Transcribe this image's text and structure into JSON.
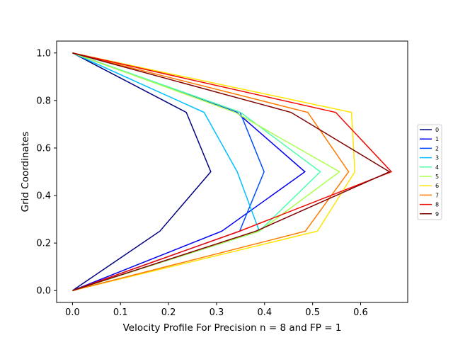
{
  "chart_data": {
    "type": "line",
    "title": "",
    "xlabel": "Velocity Profile For Precision n = 8 and FP = 1",
    "ylabel": "Grid Coordinates",
    "xlim": [
      -0.033,
      0.698
    ],
    "ylim": [
      -0.05,
      1.05
    ],
    "xticks": [
      0.0,
      0.1,
      0.2,
      0.3,
      0.4,
      0.5,
      0.6
    ],
    "xtick_labels": [
      "0.0",
      "0.1",
      "0.2",
      "0.3",
      "0.4",
      "0.5",
      "0.6"
    ],
    "yticks": [
      0.0,
      0.2,
      0.4,
      0.6,
      0.8,
      1.0
    ],
    "ytick_labels": [
      "0.0",
      "0.2",
      "0.4",
      "0.6",
      "0.8",
      "1.0"
    ],
    "grid": false,
    "legend": "right",
    "y": [
      0.0,
      0.25,
      0.5,
      0.75,
      1.0
    ],
    "series": [
      {
        "name": "0",
        "color": "#00007f",
        "x": [
          0.0,
          0.182,
          0.288,
          0.237,
          0.0
        ]
      },
      {
        "name": "1",
        "color": "#0000f1",
        "x": [
          0.0,
          0.311,
          0.484,
          0.342,
          0.0
        ]
      },
      {
        "name": "2",
        "color": "#004cff",
        "x": [
          0.0,
          0.348,
          0.399,
          0.349,
          0.0
        ]
      },
      {
        "name": "3",
        "color": "#00c0ff",
        "x": [
          0.0,
          0.389,
          0.343,
          0.274,
          0.0
        ]
      },
      {
        "name": "4",
        "color": "#4dffaa",
        "x": [
          0.0,
          0.389,
          0.516,
          0.35,
          0.0
        ]
      },
      {
        "name": "5",
        "color": "#aaff4d",
        "x": [
          0.0,
          0.389,
          0.556,
          0.339,
          0.0
        ]
      },
      {
        "name": "6",
        "color": "#ffe500",
        "x": [
          0.0,
          0.51,
          0.588,
          0.581,
          0.0
        ]
      },
      {
        "name": "7",
        "color": "#ff7a00",
        "x": [
          0.0,
          0.485,
          0.575,
          0.49,
          0.0
        ]
      },
      {
        "name": "8",
        "color": "#f10700",
        "x": [
          0.0,
          0.348,
          0.664,
          0.548,
          0.0
        ]
      },
      {
        "name": "9",
        "color": "#7f0000",
        "x": [
          0.0,
          0.382,
          0.66,
          0.455,
          0.0
        ]
      }
    ]
  }
}
